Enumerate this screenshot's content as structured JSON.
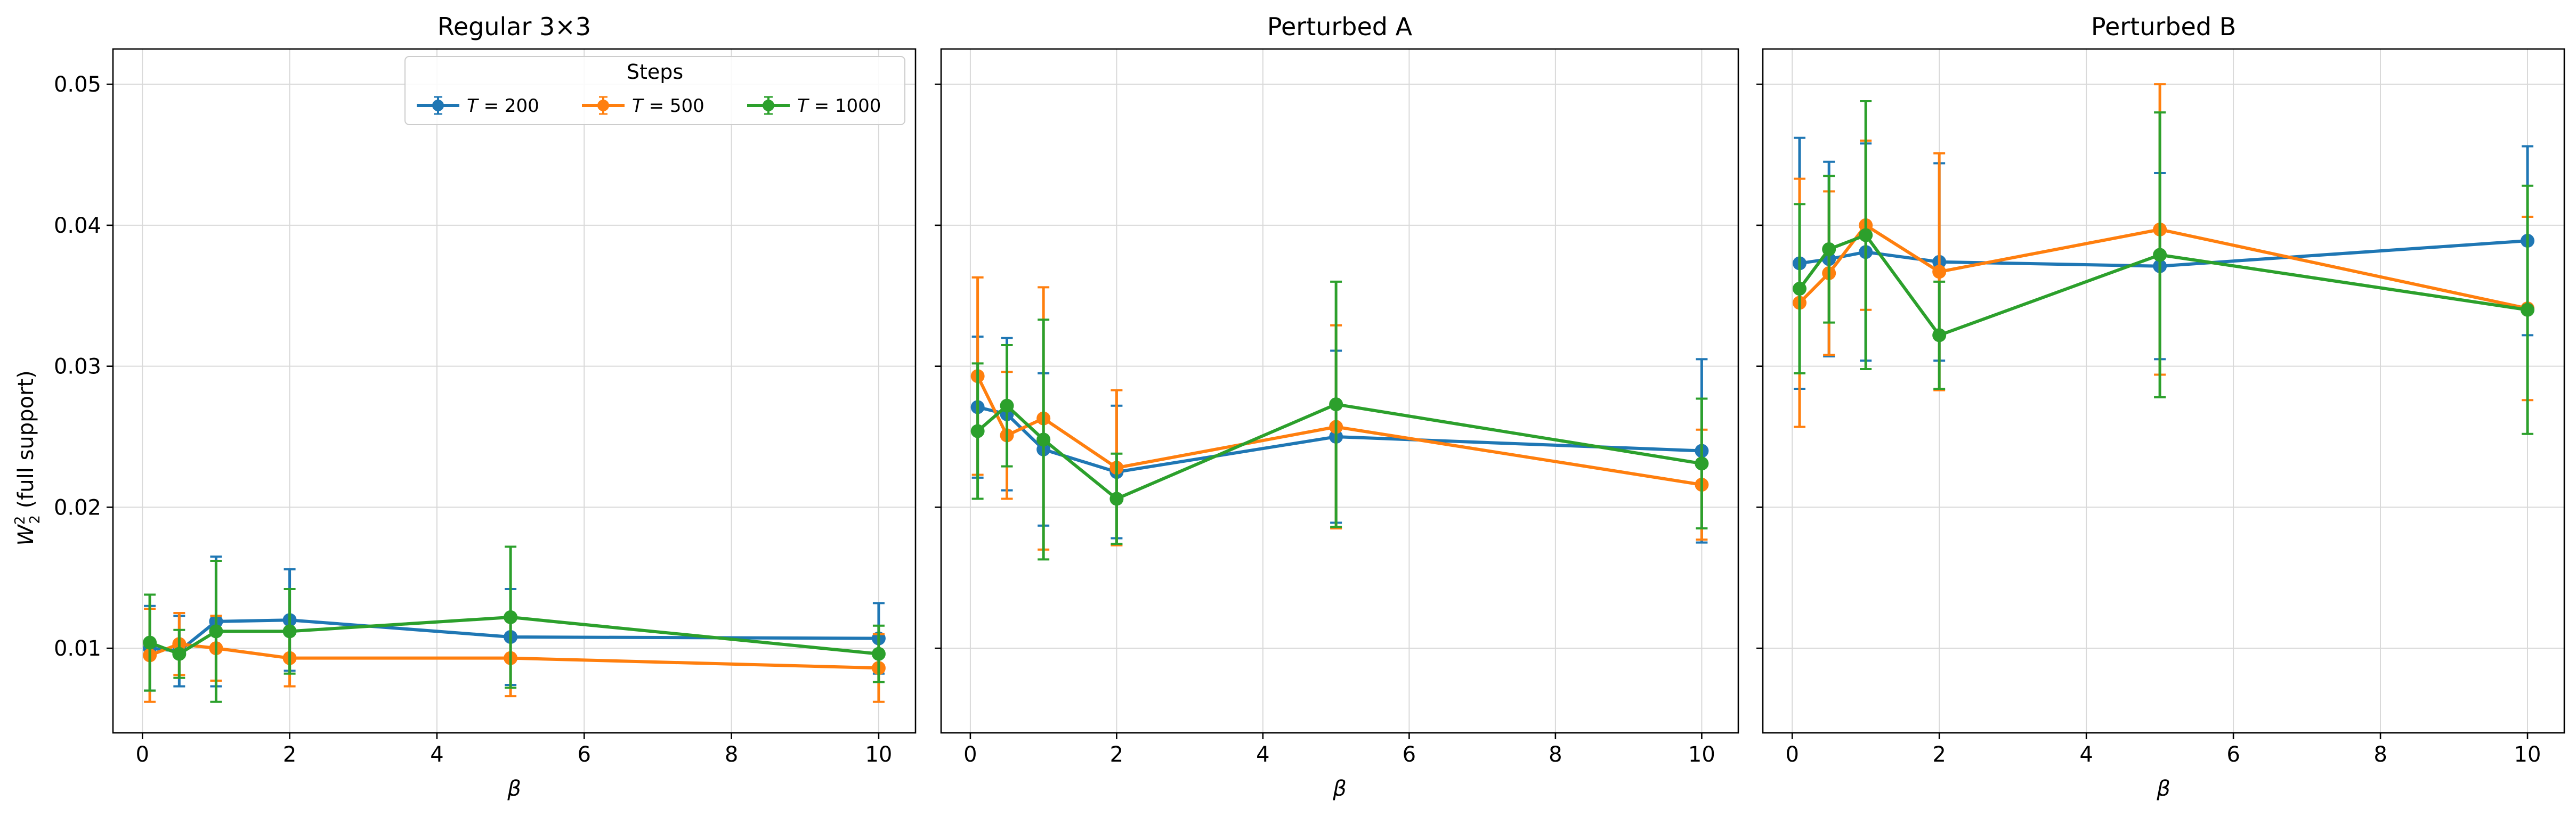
{
  "chart_data": {
    "type": "line",
    "subtype": "errorbar",
    "y_axis_label": "W₂² (full support)",
    "y_axis_label_base": "W",
    "y_axis_label_sub": "2",
    "y_axis_label_sup": "2",
    "y_axis_label_rest": " (full support)",
    "xlabel": "β",
    "shared_y": true,
    "ylim": [
      0.004,
      0.0525
    ],
    "xlim": [
      -0.4,
      10.5
    ],
    "yticks": [
      0.01,
      0.02,
      0.03,
      0.04,
      0.05
    ],
    "ytick_labels": [
      "0.01",
      "0.02",
      "0.03",
      "0.04",
      "0.05"
    ],
    "xticks": [
      0,
      2,
      4,
      6,
      8,
      10
    ],
    "xtick_labels": [
      "0",
      "2",
      "4",
      "6",
      "8",
      "10"
    ],
    "grid": true,
    "legend": {
      "title": "Steps",
      "placement": "upper-right of first panel",
      "columns": 3,
      "entries": [
        {
          "prefix": "T",
          "suffix": " = 200",
          "series": "T=200"
        },
        {
          "prefix": "T",
          "suffix": " = 500",
          "series": "T=500"
        },
        {
          "prefix": "T",
          "suffix": " = 1000",
          "series": "T=1000"
        }
      ]
    },
    "colors": {
      "T=200": "#1f77b4",
      "T=500": "#ff7f0e",
      "T=1000": "#2ca02c"
    },
    "x": [
      0.1,
      0.5,
      1,
      2,
      5,
      10
    ],
    "panels": [
      {
        "title": "Regular 3×3",
        "series": [
          {
            "name": "T=200",
            "values": [
              0.01,
              0.0098,
              0.0119,
              0.012,
              0.0108,
              0.0107
            ],
            "err": [
              0.003,
              0.0025,
              0.0046,
              0.0036,
              0.0034,
              0.0025
            ]
          },
          {
            "name": "T=500",
            "values": [
              0.0095,
              0.0103,
              0.01,
              0.0093,
              0.0093,
              0.0086
            ],
            "err": [
              0.0033,
              0.0022,
              0.0023,
              0.002,
              0.0027,
              0.0024
            ]
          },
          {
            "name": "T=1000",
            "values": [
              0.0104,
              0.0096,
              0.0112,
              0.0112,
              0.0122,
              0.0096
            ],
            "err": [
              0.0034,
              0.0017,
              0.005,
              0.003,
              0.005,
              0.002
            ]
          }
        ]
      },
      {
        "title": "Perturbed A",
        "series": [
          {
            "name": "T=200",
            "values": [
              0.0271,
              0.0266,
              0.0241,
              0.0225,
              0.025,
              0.024
            ],
            "err": [
              0.005,
              0.0054,
              0.0054,
              0.0047,
              0.0061,
              0.0065
            ]
          },
          {
            "name": "T=500",
            "values": [
              0.0293,
              0.0251,
              0.0263,
              0.0228,
              0.0257,
              0.0216
            ],
            "err": [
              0.007,
              0.0045,
              0.0093,
              0.0055,
              0.0072,
              0.0039
            ]
          },
          {
            "name": "T=1000",
            "values": [
              0.0254,
              0.0272,
              0.0248,
              0.0206,
              0.0273,
              0.0231
            ],
            "err": [
              0.0048,
              0.0043,
              0.0085,
              0.0032,
              0.0087,
              0.0046
            ]
          }
        ]
      },
      {
        "title": "Perturbed B",
        "series": [
          {
            "name": "T=200",
            "values": [
              0.0373,
              0.0376,
              0.0381,
              0.0374,
              0.0371,
              0.0389
            ],
            "err": [
              0.0089,
              0.0069,
              0.0077,
              0.007,
              0.0066,
              0.0067
            ]
          },
          {
            "name": "T=500",
            "values": [
              0.0345,
              0.0366,
              0.04,
              0.0367,
              0.0397,
              0.0341
            ],
            "err": [
              0.0088,
              0.0058,
              0.006,
              0.0084,
              0.0103,
              0.0065
            ]
          },
          {
            "name": "T=1000",
            "values": [
              0.0355,
              0.0383,
              0.0393,
              0.0322,
              0.0379,
              0.034
            ],
            "err": [
              0.006,
              0.0052,
              0.0095,
              0.0038,
              0.0101,
              0.0088
            ]
          }
        ]
      }
    ]
  }
}
